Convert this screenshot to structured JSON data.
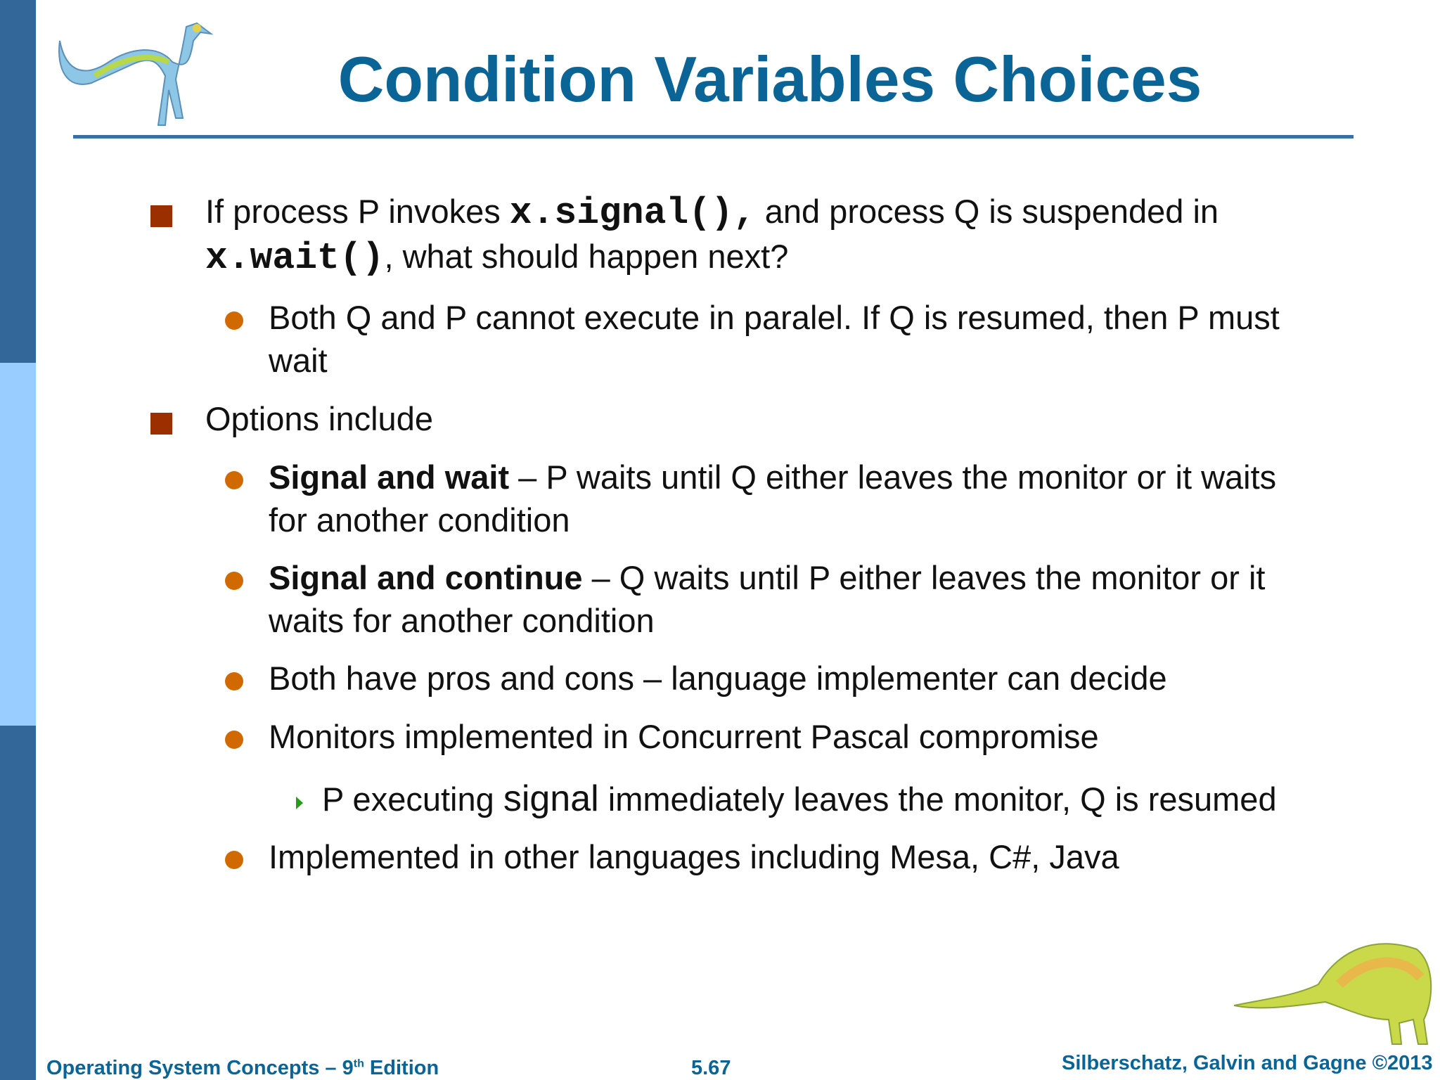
{
  "title": "Condition Variables Choices",
  "bullets": {
    "b1": {
      "t1": "If process P invokes ",
      "c1": "x.signal(),",
      "t2": " and process Q is suspended in",
      "c2": "x.wait()",
      "t3": ", what should happen next?"
    },
    "b1a": {
      "line1": "Both Q and P cannot execute in paralel. If Q is resumed, then P must",
      "line2": "wait"
    },
    "b2": "Options include",
    "b2a": {
      "bold": "Signal and wait",
      "line1": " – P waits until Q either leaves the monitor or it waits",
      "line2": "for another condition"
    },
    "b2b": {
      "bold": "Signal and continue",
      "line1": " – Q waits until P either leaves the monitor or it",
      "line2": "waits for another condition"
    },
    "b2c": "Both have pros and cons – language implementer can decide",
    "b2d": "Monitors implemented in Concurrent Pascal compromise",
    "b2d1": {
      "t1": "P executing ",
      "code": "signal",
      "t2": " immediately leaves the monitor, Q is resumed"
    },
    "b2e": "Implemented in other languages including Mesa, C#, Java"
  },
  "footer": {
    "left": "Operating System Concepts – 9",
    "left_sup": "th",
    "left_end": " Edition",
    "page": "5.67",
    "right": "Silberschatz, Galvin and Gagne ©2013"
  },
  "colors": {
    "title": "#0b6496",
    "bar_dark": "#336699",
    "bar_light": "#99ccff",
    "square_bullet": "#9b2f00",
    "dot_bullet": "#d06a00"
  }
}
